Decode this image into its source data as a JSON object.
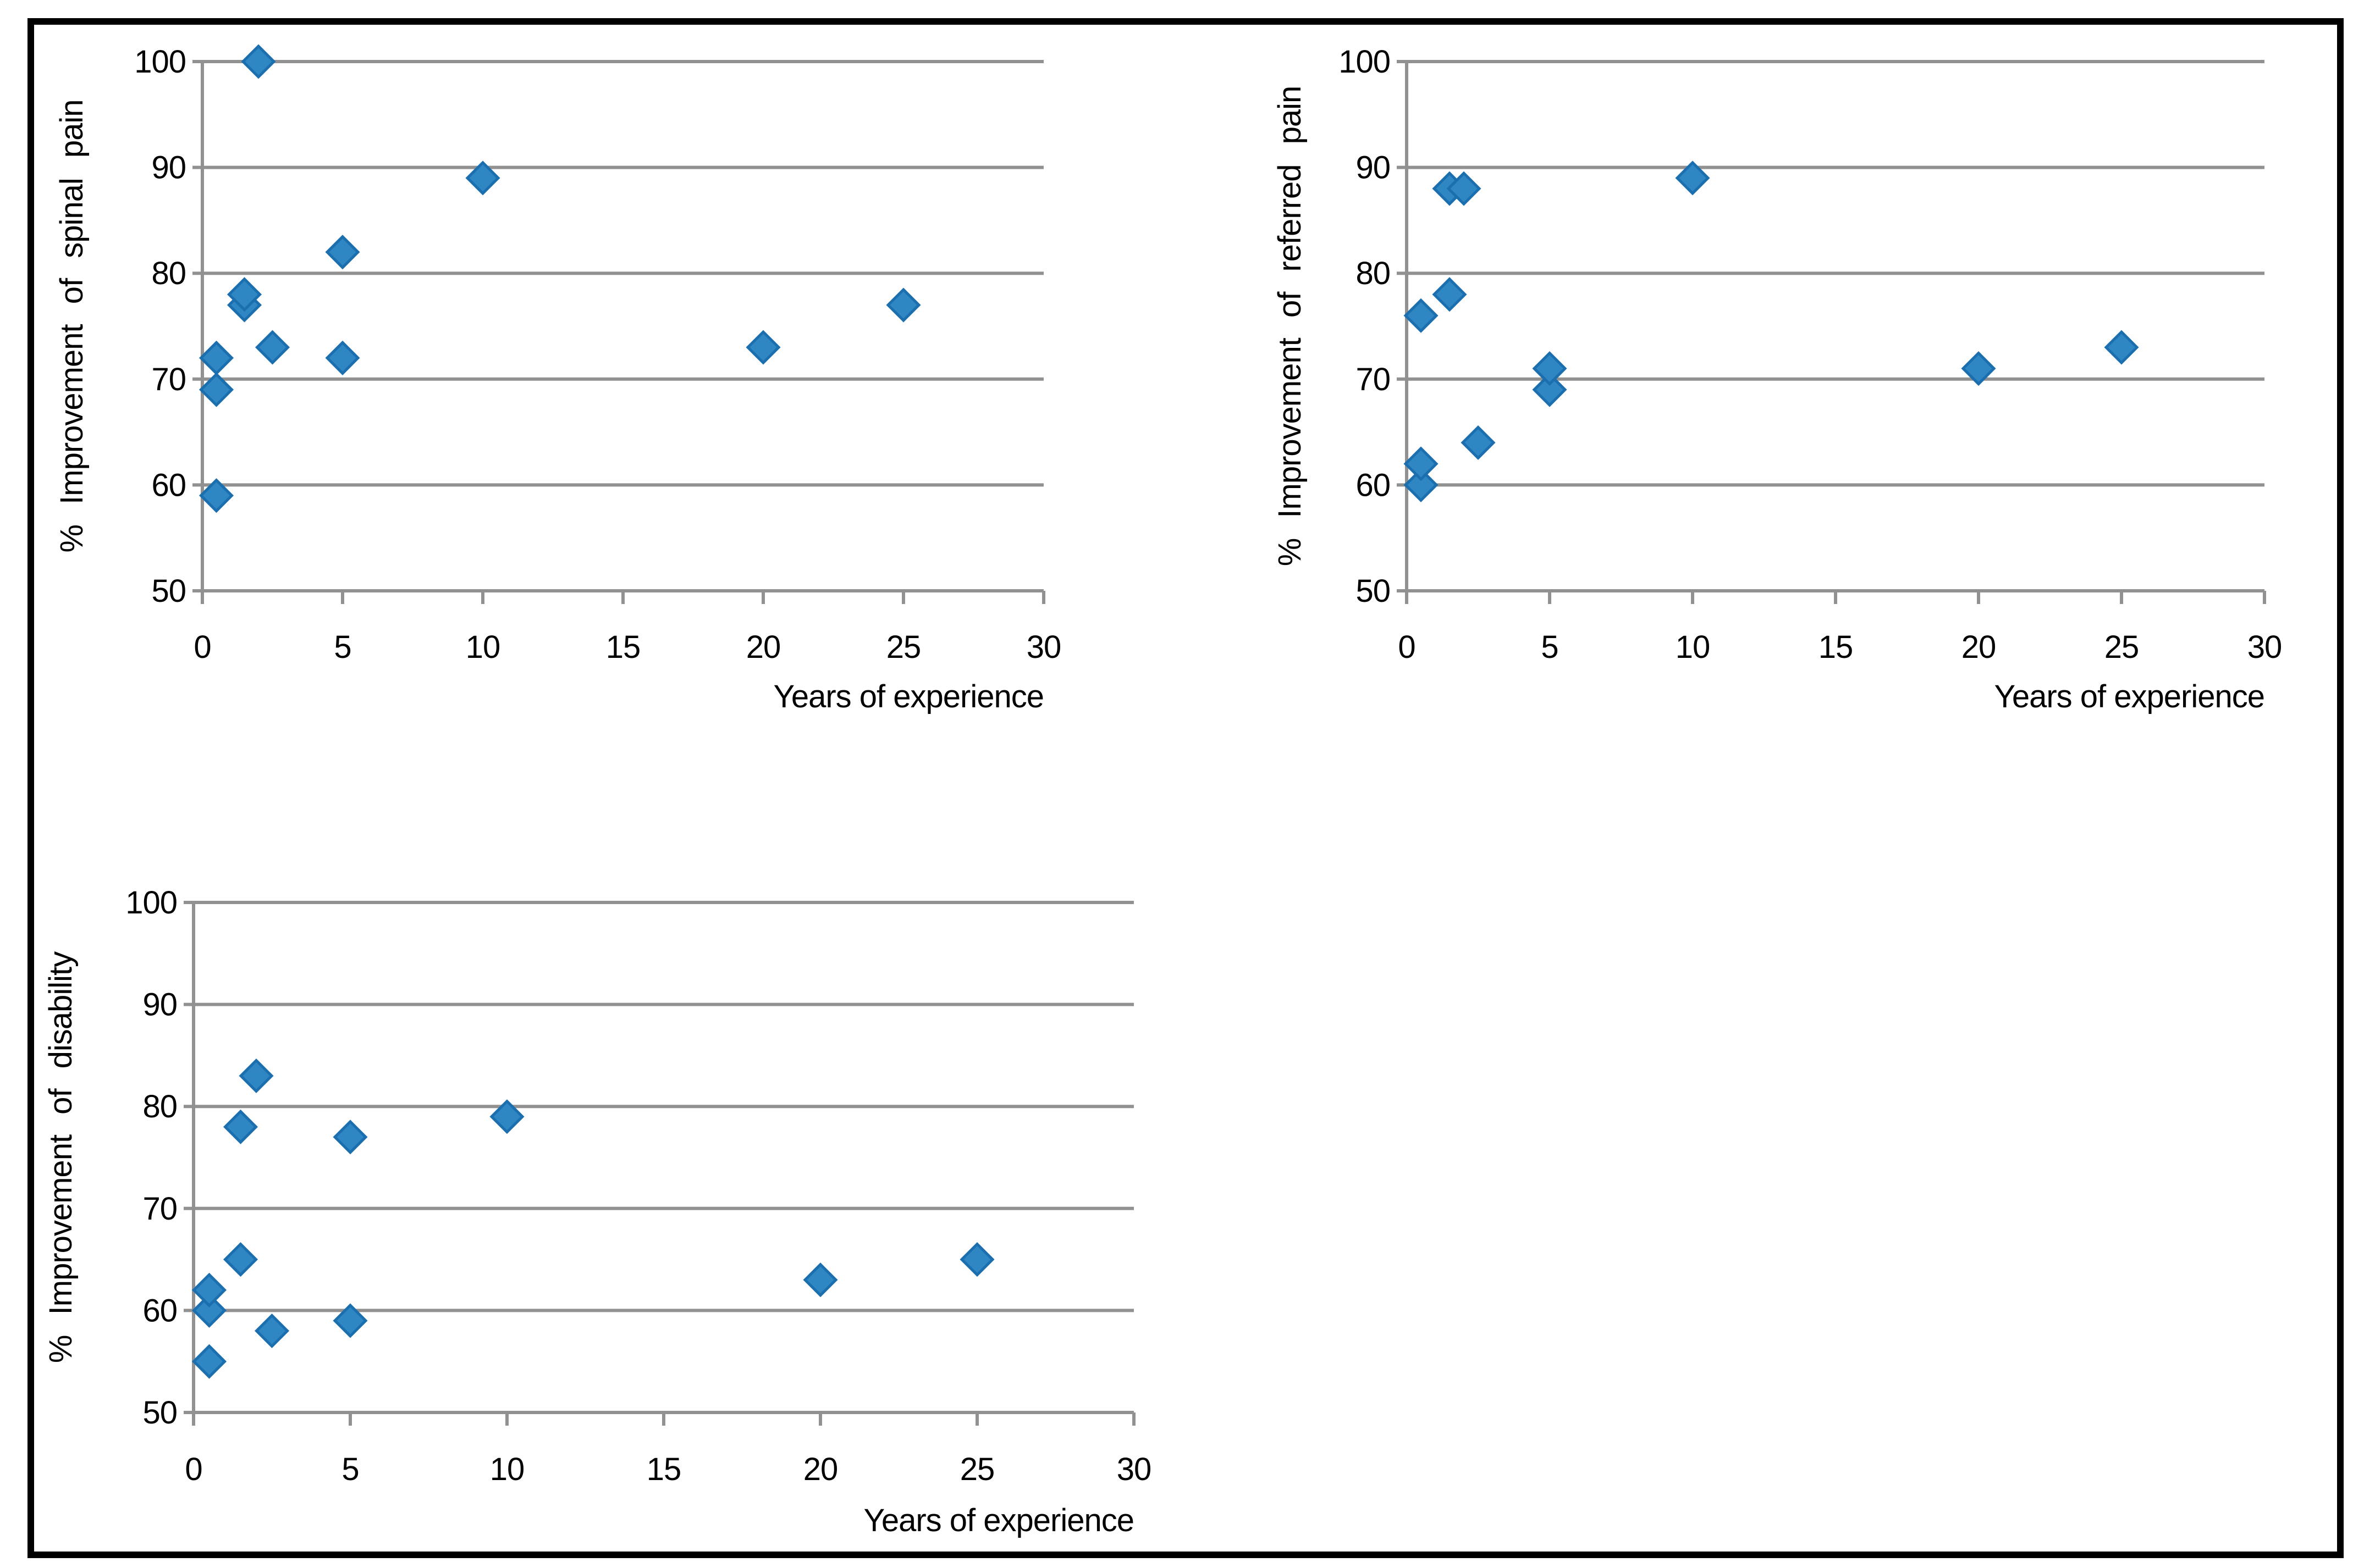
{
  "style": {
    "background": "#ffffff",
    "border_color": "#000000",
    "grid_color": "#919191",
    "axis_color": "#919191",
    "text_color": "#000000",
    "marker_fill": "#2E86C3",
    "marker_stroke": "#1C6FAF"
  },
  "chart_data": [
    {
      "id": "spinal-pain",
      "type": "scatter",
      "title": "",
      "xlabel": "Years of experience",
      "ylabel": "% Improvement of spinal pain",
      "xlim": [
        0,
        30
      ],
      "ylim": [
        50,
        100
      ],
      "xticks": [
        0,
        5,
        10,
        15,
        20,
        25,
        30
      ],
      "yticks": [
        50,
        60,
        70,
        80,
        90,
        100
      ],
      "grid": true,
      "legend": "none",
      "marker": "diamond",
      "points": [
        [
          0.5,
          59
        ],
        [
          0.5,
          69
        ],
        [
          0.5,
          72
        ],
        [
          1.5,
          77
        ],
        [
          1.5,
          78
        ],
        [
          2,
          100
        ],
        [
          2.5,
          73
        ],
        [
          5,
          72
        ],
        [
          5,
          82
        ],
        [
          10,
          89
        ],
        [
          20,
          73
        ],
        [
          25,
          77
        ]
      ]
    },
    {
      "id": "referred-pain",
      "type": "scatter",
      "title": "",
      "xlabel": "Years of experience",
      "ylabel": "% Improvement of referred pain",
      "xlim": [
        0,
        30
      ],
      "ylim": [
        50,
        100
      ],
      "xticks": [
        0,
        5,
        10,
        15,
        20,
        25,
        30
      ],
      "yticks": [
        50,
        60,
        70,
        80,
        90,
        100
      ],
      "grid": true,
      "legend": "none",
      "marker": "diamond",
      "points": [
        [
          0.5,
          60
        ],
        [
          0.5,
          62
        ],
        [
          0.5,
          76
        ],
        [
          1.5,
          78
        ],
        [
          1.5,
          88
        ],
        [
          2,
          88
        ],
        [
          2.5,
          64
        ],
        [
          5,
          69
        ],
        [
          5,
          71
        ],
        [
          10,
          89
        ],
        [
          20,
          71
        ],
        [
          25,
          73
        ]
      ]
    },
    {
      "id": "disability",
      "type": "scatter",
      "title": "",
      "xlabel": "Years of experience",
      "ylabel": "% Improvement of disability",
      "xlim": [
        0,
        30
      ],
      "ylim": [
        50,
        100
      ],
      "xticks": [
        0,
        5,
        10,
        15,
        20,
        25,
        30
      ],
      "yticks": [
        50,
        60,
        70,
        80,
        90,
        100
      ],
      "grid": true,
      "legend": "none",
      "marker": "diamond",
      "points": [
        [
          0.5,
          55
        ],
        [
          0.5,
          60
        ],
        [
          0.5,
          62
        ],
        [
          1.5,
          65
        ],
        [
          1.5,
          78
        ],
        [
          2,
          83
        ],
        [
          2.5,
          58
        ],
        [
          5,
          59
        ],
        [
          5,
          77
        ],
        [
          10,
          79
        ],
        [
          20,
          63
        ],
        [
          25,
          65
        ]
      ]
    }
  ]
}
